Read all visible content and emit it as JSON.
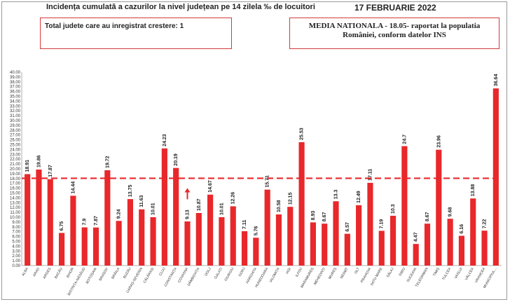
{
  "header": {
    "title": "Incidența cumulată a cazurilor la nivel județean pe 14 zilela ‰ de locuitori",
    "date": "17 FEBRUARIE 2022"
  },
  "info_box_left": {
    "text": "Total judete care au inregistrat crestere: 1"
  },
  "info_box_right": {
    "line1": "MEDIA NATIONALA - 18.05-  raportat la populatia",
    "line2": "României, conform datelor INS"
  },
  "chart_data": {
    "type": "bar",
    "categories": [
      "ALBA",
      "ARAD",
      "ARGEȘ",
      "BACĂU",
      "BIHOR",
      "BISTRIȚA-NĂSĂUD",
      "BOTOȘANI",
      "BRAȘOV",
      "BRĂILA",
      "BUZĂU",
      "CARAȘ-SEVERIN",
      "CĂLĂRAȘI",
      "CLUJ",
      "CONSTANȚA",
      "COVASNA",
      "DÂMBOVIȚA",
      "DOLJ",
      "GALAȚI",
      "GIURGIU",
      "GORJ",
      "HARGHITA",
      "HUNEDOARA",
      "IALOMIȚA",
      "IAȘI",
      "ILFOV",
      "MARAMUREȘ",
      "MEHEDINȚI",
      "MUREȘ",
      "NEAMȚ",
      "OLT",
      "PRAHOVA",
      "SATU MARE",
      "SĂLAJ",
      "SIBIU",
      "SUCEAVA",
      "TELEORMAN",
      "TIMIȘ",
      "TULCEA",
      "VASLUI",
      "VÂLCEA",
      "VRANCEA",
      "MUNICIPIUL..."
    ],
    "values": [
      18.91,
      19.86,
      17.87,
      6.75,
      14.44,
      7.9,
      7.87,
      19.72,
      9.24,
      13.75,
      11.63,
      10.01,
      24.23,
      20.19,
      9.13,
      10.87,
      14.67,
      10.01,
      12.26,
      7.11,
      5.76,
      15.71,
      10.58,
      12.15,
      25.53,
      8.93,
      8.67,
      13.3,
      6.57,
      12.49,
      17.11,
      7.19,
      10.3,
      24.7,
      4.47,
      8.67,
      23.96,
      9.68,
      6.16,
      13.88,
      7.22,
      36.64
    ],
    "value_labels": [
      "18.91",
      "19.86",
      "17.87",
      "6.75",
      "14.44",
      "7.9",
      "7.87",
      "19.72",
      "9.24",
      "13.75",
      "11.63",
      "10.01",
      "24.23",
      "20.19",
      "9.13",
      "10.87",
      "14.67",
      "10.01",
      "12.26",
      "7.11",
      "5.76",
      "15.71",
      "10.58",
      "12.15",
      "25.53",
      "8.93",
      "8.67",
      "13.3",
      "6.57",
      "12.49",
      "17.11",
      "7.19",
      "10.3",
      "24.7",
      "4.47",
      "8.67",
      "23.96",
      "9.68",
      "6.16",
      "13.88",
      "7.22",
      "36.64"
    ],
    "y_ticks": [
      "0.00",
      "1.00",
      "2.00",
      "3.00",
      "4.00",
      "5.00",
      "6.00",
      "7.00",
      "8.00",
      "9.00",
      "10.00",
      "11.00",
      "12.00",
      "13.00",
      "14.00",
      "15.00",
      "16.00",
      "17.00",
      "18.00",
      "19.00",
      "20.00",
      "21.00",
      "22.00",
      "23.00",
      "24.00",
      "25.00",
      "26.00",
      "27.00",
      "28.00",
      "29.00",
      "30.00",
      "31.00",
      "32.00",
      "33.00",
      "34.00",
      "35.00",
      "36.00",
      "37.00",
      "38.00",
      "39.00",
      "40.00"
    ],
    "ylim": [
      0,
      40
    ],
    "reference_line": 18.05,
    "increase_marker_category": "COVASNA",
    "bar_color": "#e8282b",
    "reference_line_color": "#e8282b",
    "grid": false,
    "legend": "none"
  }
}
